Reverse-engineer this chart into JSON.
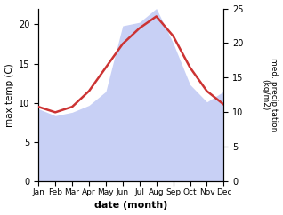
{
  "months": [
    "Jan",
    "Feb",
    "Mar",
    "Apr",
    "May",
    "Jun",
    "Jul",
    "Aug",
    "Sep",
    "Oct",
    "Nov",
    "Dec"
  ],
  "month_indices": [
    1,
    2,
    3,
    4,
    5,
    6,
    7,
    8,
    9,
    10,
    11,
    12
  ],
  "max_temp": [
    9.5,
    8.8,
    9.5,
    11.5,
    14.5,
    17.5,
    19.5,
    21.0,
    18.5,
    14.5,
    11.5,
    9.8
  ],
  "precipitation": [
    10.5,
    9.5,
    10.0,
    11.0,
    13.0,
    22.5,
    23.0,
    25.0,
    20.0,
    14.0,
    11.5,
    13.0
  ],
  "temp_color": "#cc3333",
  "precip_fill_color": "#c8d0f5",
  "left_ylabel": "max temp (C)",
  "right_ylabel": "med. precipitation\n(kg/m2)",
  "xlabel": "date (month)",
  "ylim_left": [
    0,
    22
  ],
  "ylim_right": [
    0,
    25
  ],
  "yticks_left": [
    0,
    5,
    10,
    15,
    20
  ],
  "yticks_right": [
    0,
    5,
    10,
    15,
    20,
    25
  ],
  "bg_color": "#ffffff"
}
